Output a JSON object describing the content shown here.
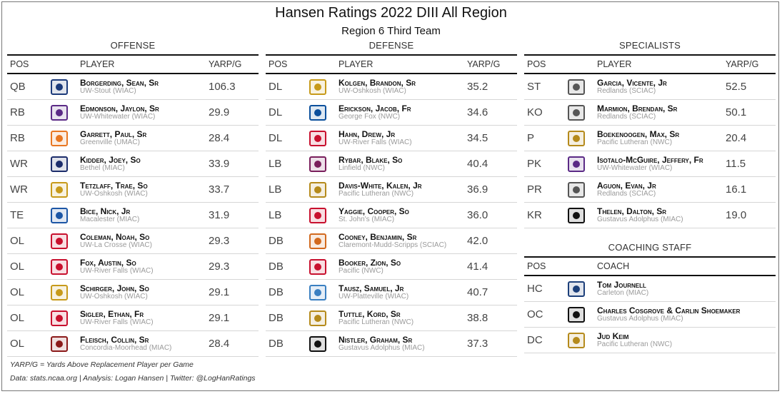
{
  "title": "Hansen Ratings 2022 DIII All Region",
  "subtitle": "Region 6 Third Team",
  "offense": {
    "heading": "OFFENSE",
    "columns": {
      "pos": "POS",
      "player": "PLAYER",
      "value": "YARP/G"
    },
    "rows": [
      {
        "pos": "QB",
        "name": "Borgerding, Sean, Sr",
        "team": "UW-Stout (WIAC)",
        "value": "106.3",
        "logo": "stout-logo",
        "color": "#1b3a7a"
      },
      {
        "pos": "RB",
        "name": "Edmonson, Jaylon, Sr",
        "team": "UW-Whitewater (WIAC)",
        "value": "29.9",
        "logo": "warhawk-logo",
        "color": "#5b2a86"
      },
      {
        "pos": "RB",
        "name": "Garrett, Paul, Sr",
        "team": "Greenville (UMAC)",
        "value": "28.4",
        "logo": "panther-logo",
        "color": "#e87722"
      },
      {
        "pos": "WR",
        "name": "Kidder, Joey, So",
        "team": "Bethel (MIAC)",
        "value": "33.9",
        "logo": "bethel-logo",
        "color": "#1c2d6b"
      },
      {
        "pos": "WR",
        "name": "Tetzlaff, Trae, So",
        "team": "UW-Oshkosh (WIAC)",
        "value": "33.7",
        "logo": "titan-logo",
        "color": "#c79a1a"
      },
      {
        "pos": "TE",
        "name": "Bice, Nick, Jr",
        "team": "Macalester (MIAC)",
        "value": "31.9",
        "logo": "mac-logo",
        "color": "#1c56a5"
      },
      {
        "pos": "OL",
        "name": "Coleman, Noah, So",
        "team": "UW-La Crosse (WIAC)",
        "value": "29.3",
        "logo": "eagle-logo",
        "color": "#c8102e"
      },
      {
        "pos": "OL",
        "name": "Fox, Austin, So",
        "team": "UW-River Falls (WIAC)",
        "value": "29.3",
        "logo": "falcon-logo",
        "color": "#c8102e"
      },
      {
        "pos": "OL",
        "name": "Schirger, John, So",
        "team": "UW-Oshkosh (WIAC)",
        "value": "29.1",
        "logo": "titan-logo",
        "color": "#c79a1a"
      },
      {
        "pos": "OL",
        "name": "Sigler, Ethan, Fr",
        "team": "UW-River Falls (WIAC)",
        "value": "29.1",
        "logo": "falcon-logo",
        "color": "#c8102e"
      },
      {
        "pos": "OL",
        "name": "Fleisch, Collin, Sr",
        "team": "Concordia-Moorhead (MIAC)",
        "value": "28.4",
        "logo": "cobber-logo",
        "color": "#8b1a1a"
      }
    ]
  },
  "defense": {
    "heading": "DEFENSE",
    "columns": {
      "pos": "POS",
      "player": "PLAYER",
      "value": "YARP/G"
    },
    "rows": [
      {
        "pos": "DL",
        "name": "Kolgen, Brandon, Sr",
        "team": "UW-Oshkosh (WIAC)",
        "value": "35.2",
        "logo": "titan-logo",
        "color": "#c79a1a"
      },
      {
        "pos": "DL",
        "name": "Erickson, Jacob, Fr",
        "team": "George Fox (NWC)",
        "value": "34.6",
        "logo": "georgefox-logo",
        "color": "#0b4f9c"
      },
      {
        "pos": "DL",
        "name": "Hahn, Drew, Jr",
        "team": "UW-River Falls (WIAC)",
        "value": "34.5",
        "logo": "falcon-logo",
        "color": "#c8102e"
      },
      {
        "pos": "LB",
        "name": "Rybar, Blake, So",
        "team": "Linfield (NWC)",
        "value": "40.4",
        "logo": "wildcat-logo",
        "color": "#7a1f5c"
      },
      {
        "pos": "LB",
        "name": "Davis-White, Kalen, Jr",
        "team": "Pacific Lutheran (NWC)",
        "value": "36.9",
        "logo": "lutes-logo",
        "color": "#b58a1b"
      },
      {
        "pos": "LB",
        "name": "Yaggie, Cooper, So",
        "team": "St. John's (MIAC)",
        "value": "36.0",
        "logo": "sju-logo",
        "color": "#c8102e"
      },
      {
        "pos": "DB",
        "name": "Cooney, Benjamin, Sr",
        "team": "Claremont-Mudd-Scripps (SCIAC)",
        "value": "42.0",
        "logo": "stag-logo",
        "color": "#d2691e"
      },
      {
        "pos": "DB",
        "name": "Booker, Zion, So",
        "team": "Pacific (NWC)",
        "value": "41.4",
        "logo": "pacific-logo",
        "color": "#c8102e"
      },
      {
        "pos": "DB",
        "name": "Tausz, Samuel, Jr",
        "team": "UW-Platteville (WIAC)",
        "value": "40.7",
        "logo": "pioneer-logo",
        "color": "#3a7fc1"
      },
      {
        "pos": "DB",
        "name": "Tuttle, Kord, Sr",
        "team": "Pacific Lutheran (NWC)",
        "value": "38.8",
        "logo": "lutes-logo",
        "color": "#b58a1b"
      },
      {
        "pos": "DB",
        "name": "Nistler, Graham, Sr",
        "team": "Gustavus Adolphus (MIAC)",
        "value": "37.3",
        "logo": "gustie-logo",
        "color": "#111111"
      }
    ]
  },
  "specialists": {
    "heading": "SPECIALISTS",
    "columns": {
      "pos": "POS",
      "player": "PLAYER",
      "value": "YARP/G"
    },
    "rows": [
      {
        "pos": "ST",
        "name": "Garcia, Vicente, Jr",
        "team": "Redlands (SCIAC)",
        "value": "52.5",
        "logo": "bulldog-logo",
        "color": "#555555"
      },
      {
        "pos": "KO",
        "name": "Marmion, Brendan, Sr",
        "team": "Redlands (SCIAC)",
        "value": "50.1",
        "logo": "bulldog-logo",
        "color": "#555555"
      },
      {
        "pos": "P",
        "name": "Boekenoogen, Max, Sr",
        "team": "Pacific Lutheran (NWC)",
        "value": "20.4",
        "logo": "lutes-logo",
        "color": "#b58a1b"
      },
      {
        "pos": "PK",
        "name": "Isotalo-McGuire, Jeffery, Fr",
        "team": "UW-Whitewater (WIAC)",
        "value": "11.5",
        "logo": "warhawk-logo",
        "color": "#5b2a86"
      },
      {
        "pos": "PR",
        "name": "Aguon, Evan, Jr",
        "team": "Redlands (SCIAC)",
        "value": "16.1",
        "logo": "bulldog-logo",
        "color": "#555555"
      },
      {
        "pos": "KR",
        "name": "Thelen, Dalton, Sr",
        "team": "Gustavus Adolphus (MIAC)",
        "value": "19.0",
        "logo": "gustie-logo",
        "color": "#111111"
      }
    ]
  },
  "coaching": {
    "heading": "COACHING STAFF",
    "columns": {
      "pos": "POS",
      "coach": "COACH"
    },
    "rows": [
      {
        "pos": "HC",
        "name": "Tom Journell",
        "team": "Carleton (MIAC)",
        "logo": "knight-logo",
        "color": "#1c3f7a"
      },
      {
        "pos": "OC",
        "name": "Charles Cosgrove & Carlin Shoemaker",
        "team": "Gustavus Adolphus (MIAC)",
        "logo": "gustie-logo",
        "color": "#111111"
      },
      {
        "pos": "DC",
        "name": "Jud Keim",
        "team": "Pacific Lutheran (NWC)",
        "logo": "lutes-logo",
        "color": "#b58a1b"
      }
    ]
  },
  "footnotes": {
    "definition": "YARP/G = Yards Above Replacement Player per Game",
    "credits": "Data: stats.ncaa.org | Analysis: Logan Hansen | Twitter: @LogHanRatings"
  }
}
